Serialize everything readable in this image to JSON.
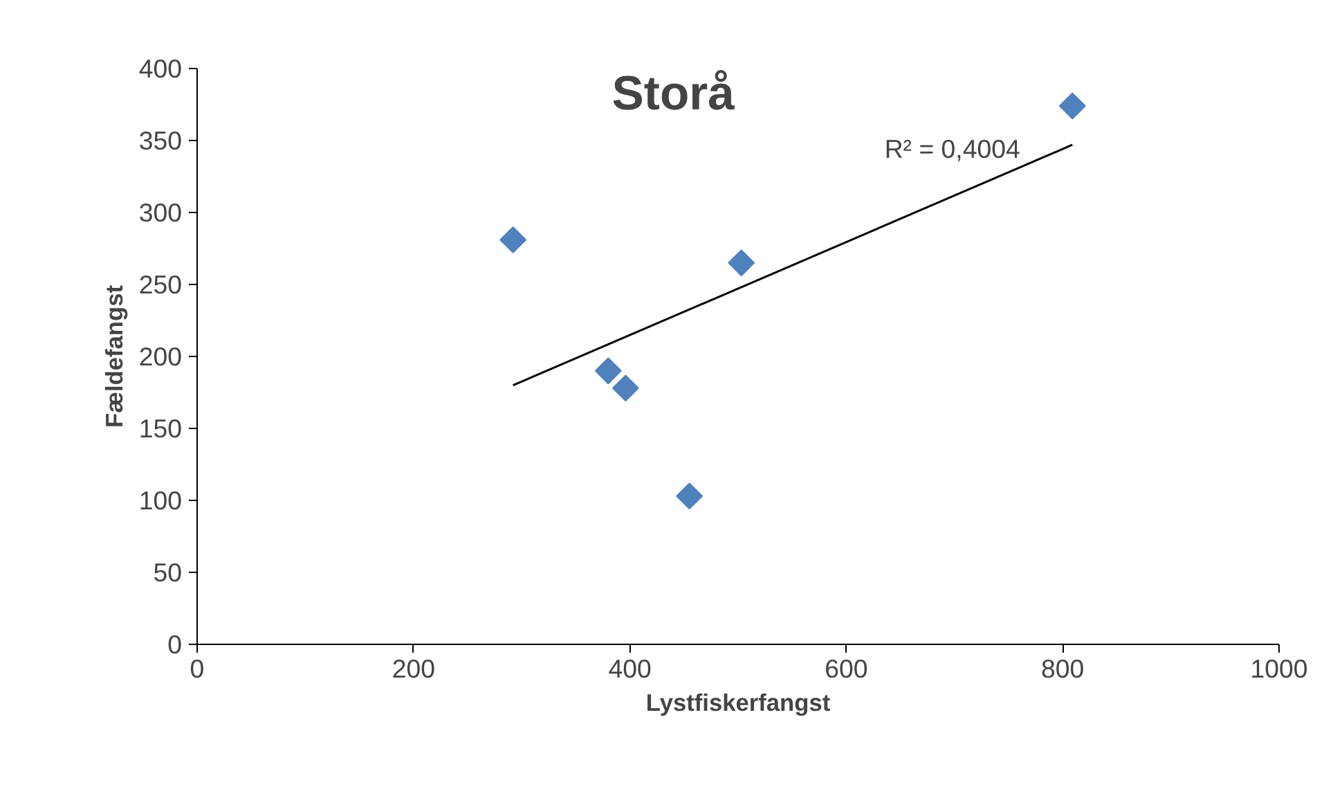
{
  "chart_data": {
    "type": "scatter",
    "title": "Storå",
    "xlabel": "Lystfiskerfangst",
    "ylabel": "Fældefangst",
    "x": [
      292,
      380,
      396,
      455,
      503,
      809
    ],
    "series": [
      {
        "color": "#4f81bd",
        "marker": "diamond",
        "values": [
          281,
          190,
          178,
          103,
          265,
          374
        ]
      },
      {
        "type": "line",
        "color": "#000000",
        "x": [
          292,
          809
        ],
        "values": [
          180,
          347
        ]
      }
    ],
    "annotations": [
      "R² = 0,4004"
    ],
    "xlim": [
      0,
      1000
    ],
    "ylim": [
      0,
      400
    ],
    "xticks": [
      0,
      200,
      400,
      600,
      800,
      1000
    ],
    "yticks": [
      0,
      50,
      100,
      150,
      200,
      250,
      300,
      350,
      400
    ],
    "grid": false
  }
}
